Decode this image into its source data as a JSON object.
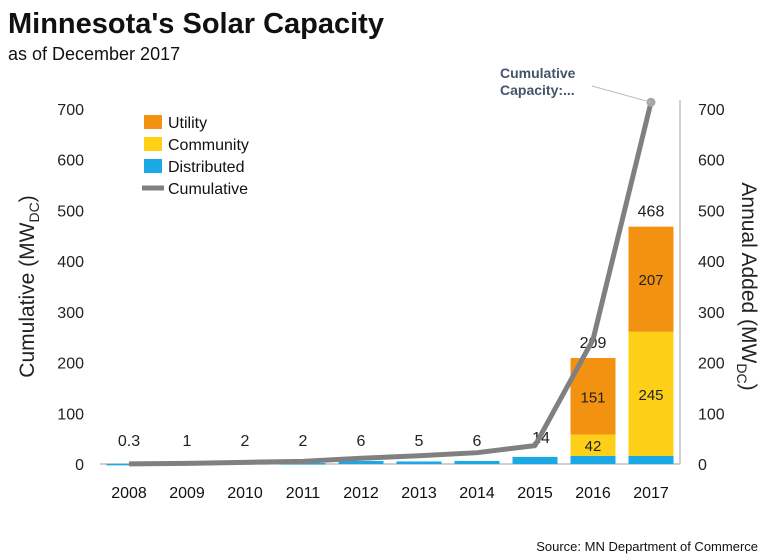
{
  "title": "Minnesota's Solar Capacity",
  "subtitle": "as of December 2017",
  "source": "Source: MN Department of Commerce",
  "chart_data": {
    "type": "bar",
    "categories": [
      "2008",
      "2009",
      "2010",
      "2011",
      "2012",
      "2013",
      "2014",
      "2015",
      "2016",
      "2017"
    ],
    "series": [
      {
        "name": "Utility",
        "color": "#F39110",
        "values": [
          0,
          0,
          0,
          0,
          0,
          0,
          0,
          0,
          151,
          207
        ]
      },
      {
        "name": "Community",
        "color": "#FDD017",
        "values": [
          0,
          0,
          0,
          0,
          0,
          0,
          0,
          0,
          42,
          245
        ]
      },
      {
        "name": "Distributed",
        "color": "#1BA9E6",
        "values": [
          0.3,
          1,
          2,
          2,
          6,
          5,
          6,
          14,
          16,
          16
        ]
      },
      {
        "name": "Cumulative",
        "type": "line",
        "color": "#808080",
        "values": [
          0.3,
          1.3,
          3.3,
          5.3,
          11.3,
          16.3,
          22.3,
          36.3,
          245.3,
          713.3
        ]
      }
    ],
    "totals_labels": [
      "0.3",
      "1",
      "2",
      "2",
      "6",
      "5",
      "6",
      "14",
      "209",
      "468"
    ],
    "segment_labels": {
      "2016": {
        "Utility": "151",
        "Community": "42"
      },
      "2017": {
        "Utility": "207",
        "Community": "245"
      }
    },
    "annotation": "Cumulative Capacity:...",
    "ylabel_left": "Cumulative (MW",
    "ylabel_right": "Annual Added (MW",
    "ylabel_sub": "DC",
    "ylabel_close": ")",
    "ylim": [
      0,
      700
    ],
    "yticks": [
      "0",
      "100",
      "200",
      "300",
      "400",
      "500",
      "600",
      "700"
    ],
    "legend_position": "top-left",
    "grid": false
  }
}
